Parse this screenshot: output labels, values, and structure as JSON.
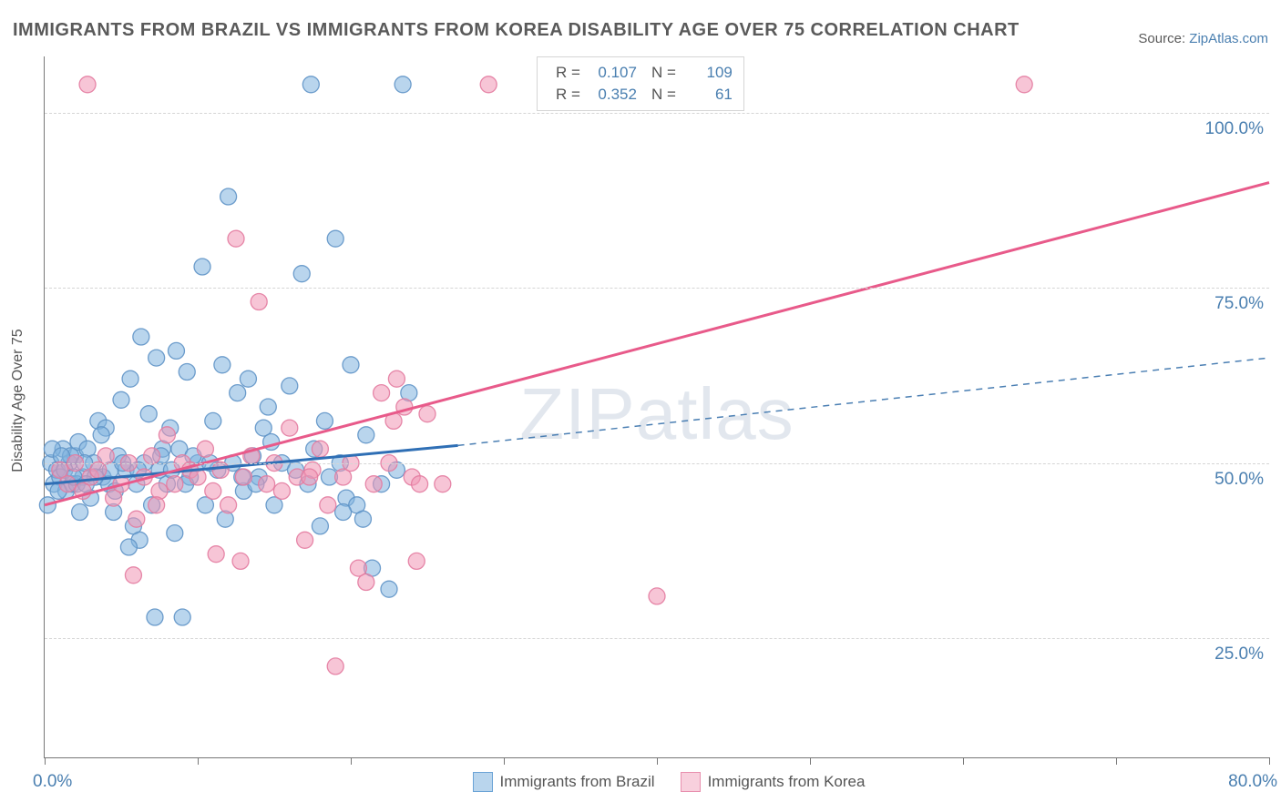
{
  "title": "IMMIGRANTS FROM BRAZIL VS IMMIGRANTS FROM KOREA DISABILITY AGE OVER 75 CORRELATION CHART",
  "source_prefix": "Source: ",
  "source_link": "ZipAtlas.com",
  "watermark": "ZIPatlas",
  "chart": {
    "type": "scatter-with-regression",
    "y_axis_label": "Disability Age Over 75",
    "xlim": [
      0,
      80
    ],
    "ylim": [
      8,
      108
    ],
    "x_ticks": [
      0,
      10,
      20,
      30,
      40,
      50,
      60,
      70,
      80
    ],
    "x_tick_labels": {
      "0": "0.0%",
      "80": "80.0%"
    },
    "y_gridlines": [
      25,
      50,
      75,
      100
    ],
    "y_tick_labels": {
      "25": "25.0%",
      "50": "50.0%",
      "75": "75.0%",
      "100": "100.0%"
    },
    "marker_radius": 9,
    "marker_opacity": 0.55,
    "background_color": "#ffffff",
    "grid_color": "#d5d5d5",
    "axis_color": "#777777",
    "series": [
      {
        "name": "Immigrants from Brazil",
        "color_fill": "#7fb2df",
        "color_stroke": "#5f94c7",
        "reg_solid": {
          "x1": 0,
          "y1": 47,
          "x2": 27,
          "y2": 52.5,
          "width": 3,
          "color": "#2f6fb5"
        },
        "reg_dashed": {
          "x1": 27,
          "y1": 52.5,
          "x2": 80,
          "y2": 65,
          "width": 1.5,
          "color": "#4b7fb3",
          "dash": "7 6"
        },
        "R": "0.107",
        "N": "109",
        "points": [
          [
            0.4,
            50
          ],
          [
            0.6,
            47
          ],
          [
            0.8,
            49
          ],
          [
            1.0,
            48
          ],
          [
            1.2,
            52
          ],
          [
            1.4,
            46
          ],
          [
            1.6,
            50
          ],
          [
            1.8,
            47
          ],
          [
            2.0,
            51
          ],
          [
            2.2,
            53
          ],
          [
            2.5,
            48
          ],
          [
            2.8,
            52
          ],
          [
            3.0,
            45
          ],
          [
            3.2,
            50
          ],
          [
            3.5,
            56
          ],
          [
            3.8,
            48
          ],
          [
            4.0,
            55
          ],
          [
            4.2,
            47
          ],
          [
            4.5,
            43
          ],
          [
            4.8,
            51
          ],
          [
            5.0,
            59
          ],
          [
            5.3,
            49
          ],
          [
            5.6,
            62
          ],
          [
            5.8,
            41
          ],
          [
            6.0,
            47
          ],
          [
            6.2,
            39
          ],
          [
            6.5,
            50
          ],
          [
            6.8,
            57
          ],
          [
            7.0,
            44
          ],
          [
            7.3,
            65
          ],
          [
            7.5,
            49
          ],
          [
            8.0,
            47
          ],
          [
            8.2,
            55
          ],
          [
            8.5,
            40
          ],
          [
            8.8,
            52
          ],
          [
            9.0,
            28
          ],
          [
            9.3,
            63
          ],
          [
            9.5,
            48
          ],
          [
            10.0,
            50
          ],
          [
            10.3,
            78
          ],
          [
            10.5,
            44
          ],
          [
            11.0,
            56
          ],
          [
            11.3,
            49
          ],
          [
            11.6,
            64
          ],
          [
            11.8,
            42
          ],
          [
            12.0,
            88
          ],
          [
            12.3,
            50
          ],
          [
            12.6,
            60
          ],
          [
            13.0,
            46
          ],
          [
            13.3,
            62
          ],
          [
            13.6,
            51
          ],
          [
            14.0,
            48
          ],
          [
            14.3,
            55
          ],
          [
            14.6,
            58
          ],
          [
            15.0,
            44
          ],
          [
            15.5,
            50
          ],
          [
            16.0,
            61
          ],
          [
            16.4,
            49
          ],
          [
            16.8,
            77
          ],
          [
            17.2,
            47
          ],
          [
            17.4,
            104
          ],
          [
            17.6,
            52
          ],
          [
            18.0,
            41
          ],
          [
            18.3,
            56
          ],
          [
            18.6,
            48
          ],
          [
            19.0,
            82
          ],
          [
            19.3,
            50
          ],
          [
            19.7,
            45
          ],
          [
            20.0,
            64
          ],
          [
            20.4,
            44
          ],
          [
            20.8,
            42
          ],
          [
            21.0,
            54
          ],
          [
            21.4,
            35
          ],
          [
            22.0,
            47
          ],
          [
            22.5,
            32
          ],
          [
            23.0,
            49
          ],
          [
            23.4,
            104
          ],
          [
            23.8,
            60
          ],
          [
            0.2,
            44
          ],
          [
            0.5,
            52
          ],
          [
            0.9,
            46
          ],
          [
            1.3,
            49
          ],
          [
            1.7,
            51
          ],
          [
            2.1,
            47
          ],
          [
            2.6,
            50
          ],
          [
            3.3,
            48
          ],
          [
            4.3,
            49
          ],
          [
            5.1,
            50
          ],
          [
            6.3,
            68
          ],
          [
            7.7,
            52
          ],
          [
            9.7,
            51
          ],
          [
            12.9,
            48
          ],
          [
            14.8,
            53
          ],
          [
            7.2,
            28
          ],
          [
            8.6,
            66
          ],
          [
            2.3,
            43
          ],
          [
            3.7,
            54
          ],
          [
            4.6,
            46
          ],
          [
            1.1,
            51
          ],
          [
            1.9,
            48
          ],
          [
            2.7,
            47
          ],
          [
            5.5,
            38
          ],
          [
            6.1,
            49
          ],
          [
            7.6,
            51
          ],
          [
            8.3,
            49
          ],
          [
            9.2,
            47
          ],
          [
            10.8,
            50
          ],
          [
            13.8,
            47
          ],
          [
            19.5,
            43
          ]
        ]
      },
      {
        "name": "Immigrants from Korea",
        "color_fill": "#f096b4",
        "color_stroke": "#e37ba0",
        "reg_solid": {
          "x1": 0,
          "y1": 44,
          "x2": 80,
          "y2": 90,
          "width": 3,
          "color": "#e85a8a"
        },
        "reg_dashed": null,
        "R": "0.352",
        "N": "61",
        "points": [
          [
            1.0,
            49
          ],
          [
            1.5,
            47
          ],
          [
            2.0,
            50
          ],
          [
            2.5,
            46
          ],
          [
            3.0,
            48
          ],
          [
            3.5,
            49
          ],
          [
            4.0,
            51
          ],
          [
            4.5,
            45
          ],
          [
            5.0,
            47
          ],
          [
            5.5,
            50
          ],
          [
            6.0,
            42
          ],
          [
            6.5,
            48
          ],
          [
            7.0,
            51
          ],
          [
            7.5,
            46
          ],
          [
            8.0,
            54
          ],
          [
            8.5,
            47
          ],
          [
            9.0,
            50
          ],
          [
            9.5,
            49
          ],
          [
            10.0,
            48
          ],
          [
            10.5,
            52
          ],
          [
            11.0,
            46
          ],
          [
            11.5,
            49
          ],
          [
            12.0,
            44
          ],
          [
            12.5,
            82
          ],
          [
            13.0,
            48
          ],
          [
            13.5,
            51
          ],
          [
            14.0,
            73
          ],
          [
            14.5,
            47
          ],
          [
            15.0,
            50
          ],
          [
            15.5,
            46
          ],
          [
            16.0,
            55
          ],
          [
            16.5,
            48
          ],
          [
            17.0,
            39
          ],
          [
            17.5,
            49
          ],
          [
            18.0,
            52
          ],
          [
            18.5,
            44
          ],
          [
            19.0,
            21
          ],
          [
            19.5,
            48
          ],
          [
            20.0,
            50
          ],
          [
            20.5,
            35
          ],
          [
            21.0,
            33
          ],
          [
            21.5,
            47
          ],
          [
            22.0,
            60
          ],
          [
            22.5,
            50
          ],
          [
            23.0,
            62
          ],
          [
            23.5,
            58
          ],
          [
            24.0,
            48
          ],
          [
            24.5,
            47
          ],
          [
            25.0,
            57
          ],
          [
            26.0,
            47
          ],
          [
            29.0,
            104
          ],
          [
            40.0,
            31
          ],
          [
            64.0,
            104
          ],
          [
            2.8,
            104
          ],
          [
            5.8,
            34
          ],
          [
            11.2,
            37
          ],
          [
            12.8,
            36
          ],
          [
            22.8,
            56
          ],
          [
            24.3,
            36
          ],
          [
            17.3,
            48
          ],
          [
            7.3,
            44
          ]
        ]
      }
    ]
  },
  "top_legend": {
    "rows": [
      {
        "swatch": "blue",
        "R_label": "R =",
        "R": "0.107",
        "N_label": "N =",
        "N": "109"
      },
      {
        "swatch": "pink",
        "R_label": "R =",
        "R": "0.352",
        "N_label": "N =",
        "N": "  61"
      }
    ]
  }
}
